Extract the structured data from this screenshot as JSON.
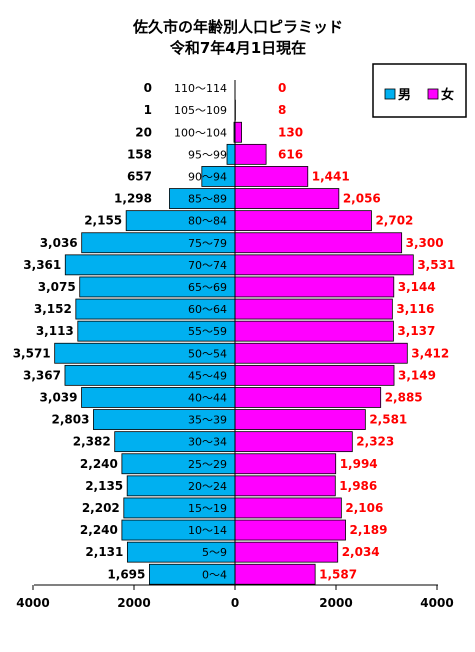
{
  "chart_data": {
    "type": "bar",
    "orientation": "horizontal-pyramid",
    "title": "佐久市の年齢別人口ピラミッド",
    "subtitle": "令和7年4月1日現在",
    "categories": [
      "110～114",
      "105～109",
      "100～104",
      "95～99",
      "90～94",
      "85～89",
      "80～84",
      "75～79",
      "70～74",
      "65～69",
      "60～64",
      "55～59",
      "50～54",
      "45～49",
      "40～44",
      "35～39",
      "30～34",
      "25～29",
      "20～24",
      "15～19",
      "10～14",
      "5～9",
      "0～4"
    ],
    "series": [
      {
        "name": "男",
        "color": "#00b0f0",
        "values": [
          0,
          1,
          20,
          158,
          657,
          1298,
          2155,
          3036,
          3361,
          3075,
          3152,
          3113,
          3571,
          3367,
          3039,
          2803,
          2382,
          2240,
          2135,
          2202,
          2240,
          2131,
          1695
        ],
        "labels": [
          "0",
          "1",
          "20",
          "158",
          "657",
          "1,298",
          "2,155",
          "3,036",
          "3,361",
          "3,075",
          "3,152",
          "3,113",
          "3,571",
          "3,367",
          "3,039",
          "2,803",
          "2,382",
          "2,240",
          "2,135",
          "2,202",
          "2,240",
          "2,131",
          "1,695"
        ]
      },
      {
        "name": "女",
        "color": "#ff00ff",
        "values": [
          0,
          8,
          130,
          616,
          1441,
          2056,
          2702,
          3300,
          3531,
          3144,
          3116,
          3137,
          3412,
          3149,
          2885,
          2581,
          2323,
          1994,
          1986,
          2106,
          2189,
          2034,
          1587
        ],
        "labels": [
          "0",
          "8",
          "130",
          "616",
          "1,441",
          "2,056",
          "2,702",
          "3,300",
          "3,531",
          "3,144",
          "3,116",
          "3,137",
          "3,412",
          "3,149",
          "2,885",
          "2,581",
          "2,323",
          "1,994",
          "1,986",
          "2,106",
          "2,189",
          "2,034",
          "1,587"
        ]
      }
    ],
    "x_ticks": [
      "4000",
      "2000",
      "0",
      "2000",
      "4000"
    ],
    "xlim": [
      -4000,
      4000
    ],
    "legend_placement": "top-right"
  }
}
